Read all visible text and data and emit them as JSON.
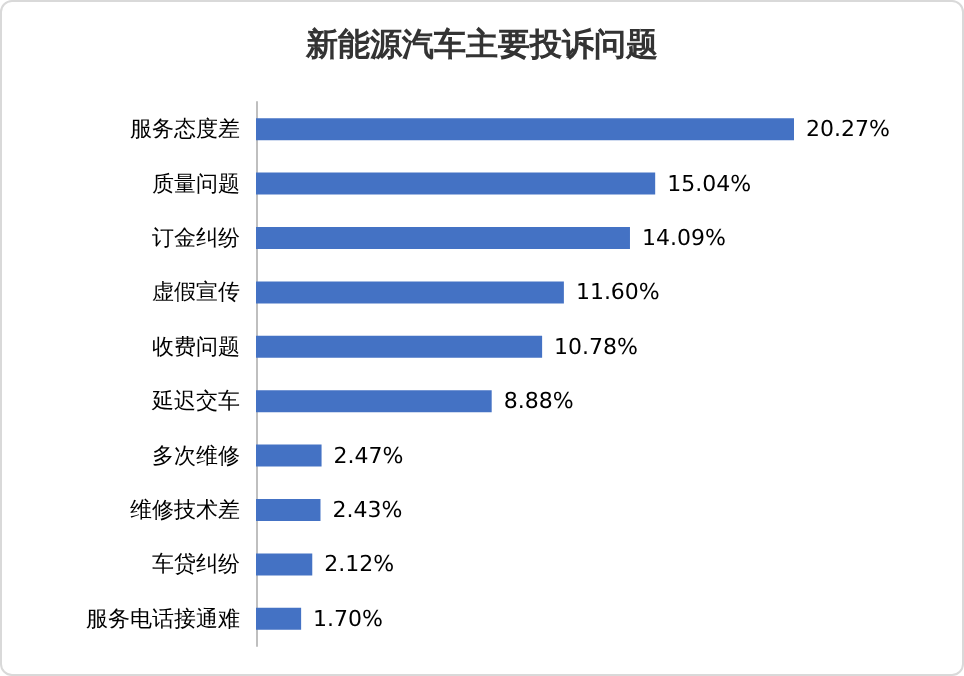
{
  "chart_data": {
    "type": "bar",
    "orientation": "horizontal",
    "title": "新能源汽车主要投诉问题",
    "categories": [
      "服务态度差",
      "质量问题",
      "订金纠纷",
      "虚假宣传",
      "收费问题",
      "延迟交车",
      "多次维修",
      "维修技术差",
      "车贷纠纷",
      "服务电话接通难"
    ],
    "values": [
      20.27,
      15.04,
      14.09,
      11.6,
      10.78,
      8.88,
      2.47,
      2.43,
      2.12,
      1.7
    ],
    "value_labels": [
      "20.27%",
      "15.04%",
      "14.09%",
      "11.60%",
      "10.78%",
      "8.88%",
      "2.47%",
      "2.43%",
      "2.12%",
      "1.70%"
    ],
    "color": "#4472c4"
  }
}
